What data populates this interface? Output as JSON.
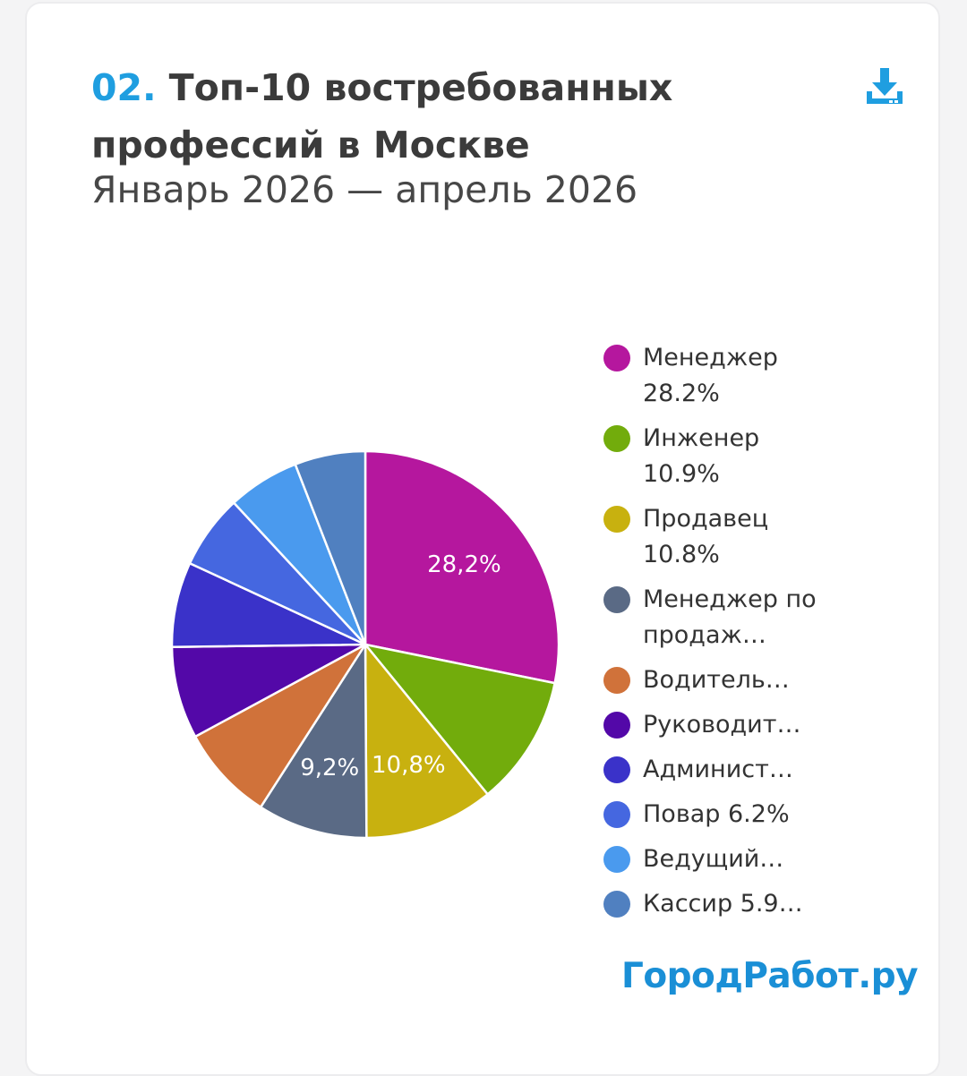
{
  "header": {
    "number": "02.",
    "title": "Топ-10 востребованных профессий в Москве",
    "subtitle": "Январь 2026 — апрель 2026"
  },
  "download_icon": "download-icon",
  "brand": "ГородРабот.ру",
  "chart_data": {
    "type": "pie",
    "title": "Топ-10 востребованных профессий в Москве",
    "subtitle": "Январь 2026 — апрель 2026",
    "legend_position": "right",
    "slices": [
      {
        "label": "Менеджер 28.2%",
        "value": 28.2,
        "color": "#b5179e",
        "data_label": "28,2%"
      },
      {
        "label": "Инженер 10.9%",
        "value": 10.9,
        "color": "#72ac0c",
        "data_label": ""
      },
      {
        "label": "Продавец 10.8%",
        "value": 10.8,
        "color": "#c8b10f",
        "data_label": "10,8%"
      },
      {
        "label": "Менеджер по продаж…",
        "value": 9.2,
        "color": "#5a6a85",
        "data_label": "9,2%"
      },
      {
        "label": "Водитель…",
        "value": 8.0,
        "color": "#d0723a",
        "data_label": ""
      },
      {
        "label": "Руководит…",
        "value": 7.7,
        "color": "#5308a8",
        "data_label": ""
      },
      {
        "label": "Админист…",
        "value": 7.1,
        "color": "#3a32c9",
        "data_label": ""
      },
      {
        "label": "Повар 6.2%",
        "value": 6.2,
        "color": "#4567e0",
        "data_label": ""
      },
      {
        "label": "Ведущий…",
        "value": 6.0,
        "color": "#4a9aee",
        "data_label": ""
      },
      {
        "label": "Кассир 5.9…",
        "value": 5.9,
        "color": "#5080c0",
        "data_label": ""
      }
    ]
  }
}
